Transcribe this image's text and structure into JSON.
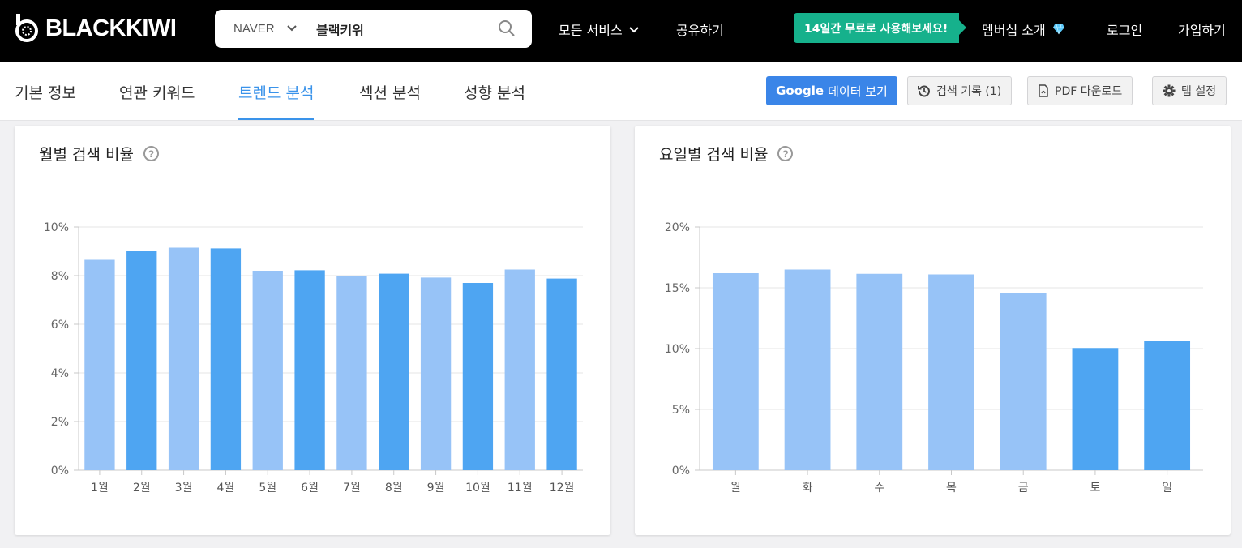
{
  "header": {
    "logo_text": "BLACKKIWI",
    "search": {
      "engine": "NAVER",
      "query": "블랙키위"
    },
    "nav": {
      "all_services": "모든 서비스",
      "share": "공유하기"
    },
    "promo": "14일간 무료로 사용해보세요!",
    "membership": "멤버십 소개",
    "login": "로그인",
    "signup": "가입하기"
  },
  "tabs": {
    "items": [
      "기본 정보",
      "연관 키워드",
      "트렌드 분석",
      "섹션 분석",
      "성향 분석"
    ],
    "active": "트렌드 분석"
  },
  "actions": {
    "google_brand": "Google",
    "google_rest": "데이터 보기",
    "history": "검색 기록 (1)",
    "pdf": "PDF 다운로드",
    "tab_settings": "탭 설정"
  },
  "colors": {
    "accent": "#3a93ea",
    "bar_light": "#97c3f7",
    "bar_dark": "#4ea5f2",
    "promo": "#16b18c"
  },
  "cards": {
    "monthly_title": "월별 검색 비율",
    "weekday_title": "요일별 검색 비율"
  },
  "chart_data": [
    {
      "type": "bar",
      "title": "월별 검색 비율",
      "categories": [
        "1월",
        "2월",
        "3월",
        "4월",
        "5월",
        "6월",
        "7월",
        "8월",
        "9월",
        "10월",
        "11월",
        "12월"
      ],
      "values": [
        8.65,
        9.0,
        9.15,
        9.12,
        8.2,
        8.22,
        8.0,
        8.08,
        7.92,
        7.7,
        8.25,
        7.88
      ],
      "ylim": [
        0,
        10
      ],
      "yticks": [
        0,
        2,
        4,
        6,
        8,
        10
      ],
      "ytick_labels": [
        "0%",
        "2%",
        "4%",
        "6%",
        "8%",
        "10%"
      ],
      "grid": true
    },
    {
      "type": "bar",
      "title": "요일별 검색 비율",
      "categories": [
        "월",
        "화",
        "수",
        "목",
        "금",
        "토",
        "일"
      ],
      "values": [
        16.2,
        16.5,
        16.15,
        16.1,
        14.55,
        10.05,
        10.6
      ],
      "ylim": [
        0,
        20
      ],
      "yticks": [
        0,
        5,
        10,
        15,
        20
      ],
      "ytick_labels": [
        "0%",
        "5%",
        "10%",
        "15%",
        "20%"
      ],
      "grid": true
    }
  ]
}
